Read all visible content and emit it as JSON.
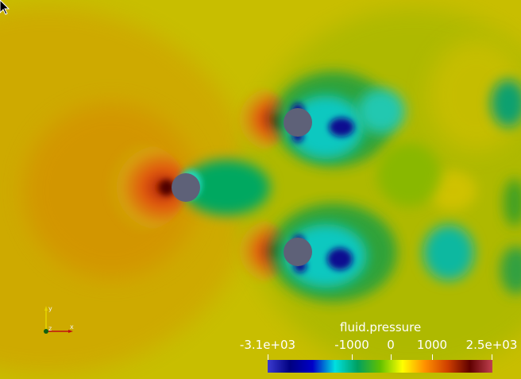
{
  "scene": {
    "description_none": "",
    "cylinder_color": "#5e6178",
    "background_color": "#c8be00"
  },
  "legend": {
    "title": "fluid.pressure",
    "ticks": [
      {
        "label": "-3.1e+03",
        "value": -3100
      },
      {
        "label": "-1000",
        "value": -1000
      },
      {
        "label": "0",
        "value": 0
      },
      {
        "label": "1000",
        "value": 1000
      },
      {
        "label": "2.5e+03",
        "value": 2500
      }
    ],
    "range": [
      -3100,
      2500
    ],
    "colormap": [
      "#3b3bd0",
      "#000080",
      "#0000c8",
      "#00e0e0",
      "#00a060",
      "#60c000",
      "#ffff00",
      "#ff9000",
      "#d04000",
      "#600000",
      "#c04050"
    ]
  },
  "orientation_axes": {
    "x_label": "x",
    "y_label": "y",
    "z_label": "z"
  }
}
